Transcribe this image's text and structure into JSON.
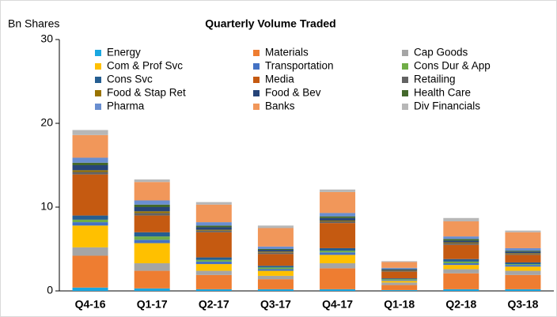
{
  "chart_data": {
    "type": "stacked_bar",
    "title": "Quarterly Volume Traded",
    "y_label": "Bn Shares",
    "categories": [
      "Q4-16",
      "Q1-17",
      "Q2-17",
      "Q3-17",
      "Q4-17",
      "Q1-18",
      "Q2-18",
      "Q3-18"
    ],
    "series": [
      {
        "name": "Energy",
        "color": "#1aa7e0",
        "values": [
          0.4,
          0.3,
          0.2,
          0.2,
          0.2,
          0.1,
          0.2,
          0.2
        ]
      },
      {
        "name": "Materials",
        "color": "#ee7d31",
        "values": [
          3.8,
          2.1,
          1.7,
          1.2,
          2.5,
          0.6,
          1.9,
          1.7
        ]
      },
      {
        "name": "Cap Goods",
        "color": "#a5a5a5",
        "values": [
          1.0,
          0.9,
          0.5,
          0.4,
          0.6,
          0.3,
          0.5,
          0.5
        ]
      },
      {
        "name": "Com & Prof Svc",
        "color": "#ffc000",
        "values": [
          2.6,
          2.4,
          0.8,
          0.6,
          1.0,
          0.2,
          0.5,
          0.5
        ]
      },
      {
        "name": "Transportation",
        "color": "#4472c4",
        "values": [
          0.4,
          0.4,
          0.3,
          0.2,
          0.3,
          0.1,
          0.2,
          0.2
        ]
      },
      {
        "name": "Cons Dur & App",
        "color": "#70ad47",
        "values": [
          0.3,
          0.4,
          0.2,
          0.2,
          0.2,
          0.1,
          0.2,
          0.1
        ]
      },
      {
        "name": "Cons Svc",
        "color": "#255e91",
        "values": [
          0.5,
          0.5,
          0.3,
          0.2,
          0.3,
          0.1,
          0.3,
          0.2
        ]
      },
      {
        "name": "Media",
        "color": "#c55a11",
        "values": [
          4.9,
          2.0,
          3.0,
          1.4,
          3.0,
          0.8,
          1.7,
          0.9
        ]
      },
      {
        "name": "Retailing",
        "color": "#636363",
        "values": [
          0.3,
          0.3,
          0.2,
          0.2,
          0.2,
          0.1,
          0.2,
          0.1
        ]
      },
      {
        "name": "Food & Stap Ret",
        "color": "#997300",
        "values": [
          0.2,
          0.2,
          0.1,
          0.1,
          0.1,
          0.05,
          0.1,
          0.1
        ]
      },
      {
        "name": "Food & Bev",
        "color": "#264478",
        "values": [
          0.6,
          0.5,
          0.3,
          0.2,
          0.3,
          0.1,
          0.2,
          0.2
        ]
      },
      {
        "name": "Health Care",
        "color": "#43682b",
        "values": [
          0.3,
          0.3,
          0.2,
          0.1,
          0.2,
          0.05,
          0.2,
          0.1
        ]
      },
      {
        "name": "Pharma",
        "color": "#698ed0",
        "values": [
          0.6,
          0.5,
          0.4,
          0.3,
          0.4,
          0.15,
          0.3,
          0.3
        ]
      },
      {
        "name": "Banks",
        "color": "#f1975a",
        "values": [
          2.7,
          2.2,
          2.1,
          2.2,
          2.5,
          0.7,
          1.8,
          1.9
        ]
      },
      {
        "name": "Div Financials",
        "color": "#b7b7b7",
        "values": [
          0.6,
          0.3,
          0.3,
          0.3,
          0.3,
          0.1,
          0.4,
          0.2
        ]
      }
    ],
    "ylim": [
      0,
      30
    ],
    "yticks": [
      0,
      10,
      20,
      30
    ]
  }
}
